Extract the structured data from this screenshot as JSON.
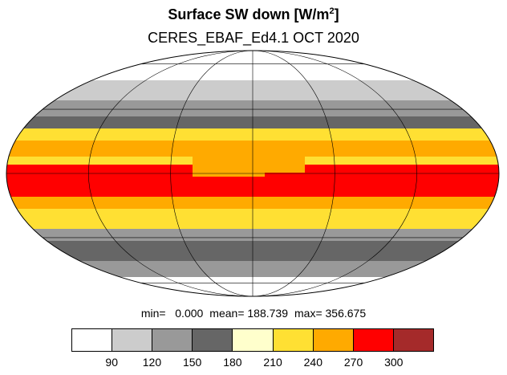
{
  "title": "Surface SW down [W/m",
  "title_sup": "2",
  "title_close": "]",
  "subtitle": "CERES_EBAF_Ed4.1 OCT 2020",
  "stats": {
    "min": "min=   0.000",
    "mean": "mean= 188.739",
    "max": "max= 356.675"
  },
  "colorbar": {
    "colors": [
      "#ffffff",
      "#cccccc",
      "#999999",
      "#666666",
      "#ffffcc",
      "#ffe033",
      "#ffaa00",
      "#ff0000",
      "#a52a2a"
    ],
    "labels": [
      "90",
      "120",
      "150",
      "180",
      "210",
      "240",
      "270",
      "300"
    ]
  },
  "map": {
    "projection": "mollweide",
    "graticule": true
  }
}
